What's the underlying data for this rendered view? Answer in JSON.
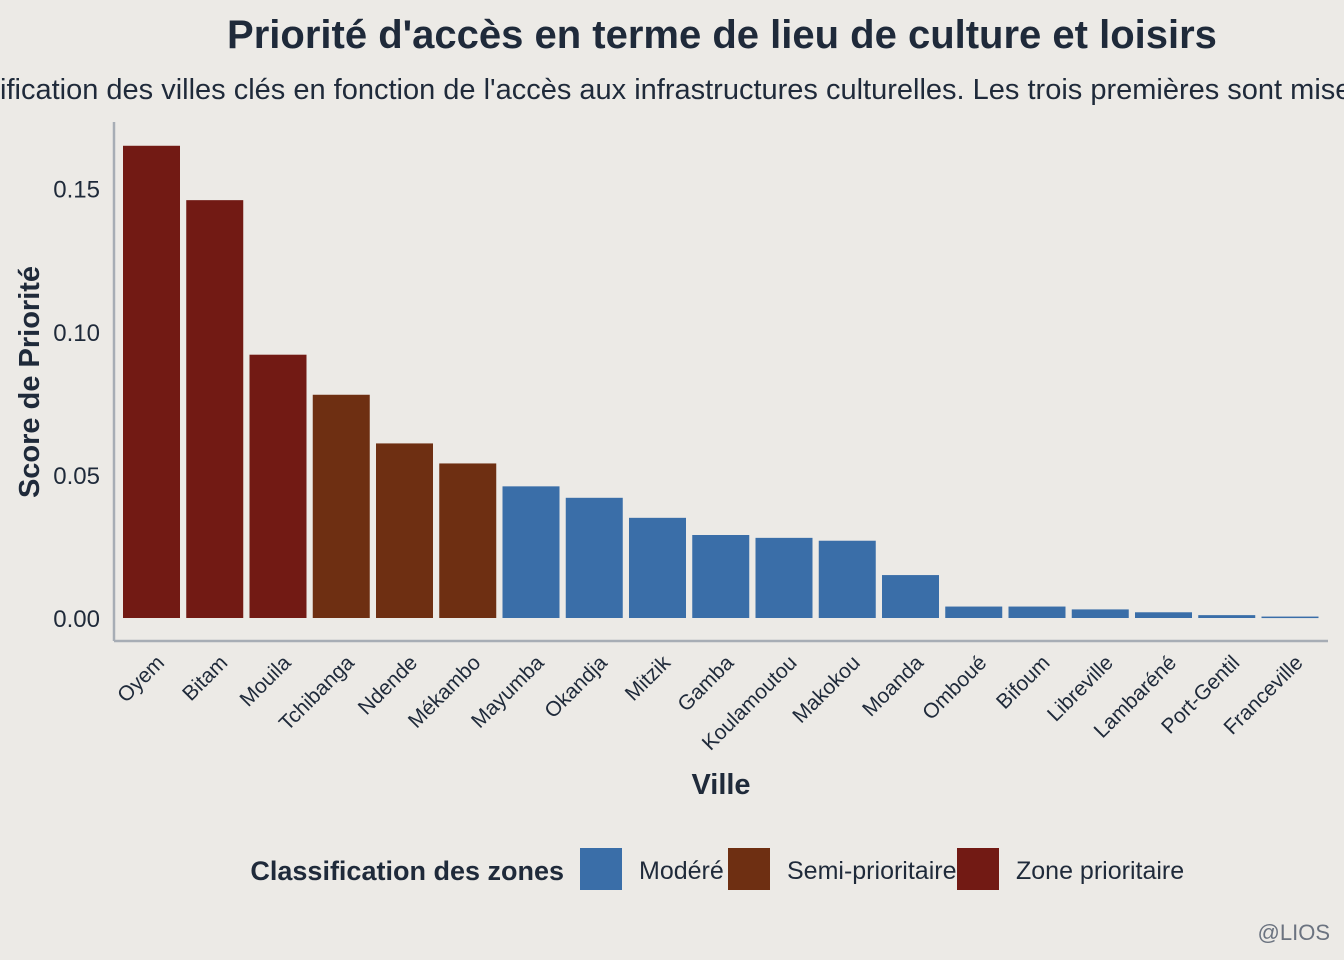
{
  "chart_data": {
    "type": "bar",
    "title": "Priorité d'accès en terme de lieu de culture et loisirs",
    "subtitle": "ification des villes clés en fonction de l'accès aux infrastructures culturelles. Les trois premières sont mises",
    "xlabel": "Ville",
    "ylabel": "Score de Priorité",
    "ylim": [
      0,
      0.172
    ],
    "yticks": [
      {
        "value": 0.0,
        "label": "0.00"
      },
      {
        "value": 0.05,
        "label": "0.05"
      },
      {
        "value": 0.1,
        "label": "0.10"
      },
      {
        "value": 0.15,
        "label": "0.15"
      }
    ],
    "categories": [
      "Oyem",
      "Bitam",
      "Mouila",
      "Tchibanga",
      "Ndende",
      "Mékambo",
      "Mayumba",
      "Okandja",
      "Mitzik",
      "Gamba",
      "Koulamoutou",
      "Makokou",
      "Moanda",
      "Omboué",
      "Bifoum",
      "Libreville",
      "Lambaréné",
      "Port-Gentil",
      "Franceville"
    ],
    "values": [
      0.165,
      0.146,
      0.092,
      0.078,
      0.061,
      0.054,
      0.046,
      0.042,
      0.035,
      0.029,
      0.028,
      0.027,
      0.015,
      0.004,
      0.004,
      0.003,
      0.002,
      0.001,
      0.0005
    ],
    "classes": [
      "Zone prioritaire",
      "Zone prioritaire",
      "Zone prioritaire",
      "Semi-prioritaire",
      "Semi-prioritaire",
      "Semi-prioritaire",
      "Modéré",
      "Modéré",
      "Modéré",
      "Modéré",
      "Modéré",
      "Modéré",
      "Modéré",
      "Modéré",
      "Modéré",
      "Modéré",
      "Modéré",
      "Modéré",
      "Modéré"
    ],
    "legend": {
      "title": "Classification des zones",
      "placement": "bottom",
      "items": [
        {
          "label": "Modéré",
          "color": "#3A6EA8"
        },
        {
          "label": "Semi-prioritaire",
          "color": "#6E2F12"
        },
        {
          "label": "Zone prioritaire",
          "color": "#721A14"
        }
      ]
    },
    "grid": false,
    "caption": "@LIOS"
  }
}
